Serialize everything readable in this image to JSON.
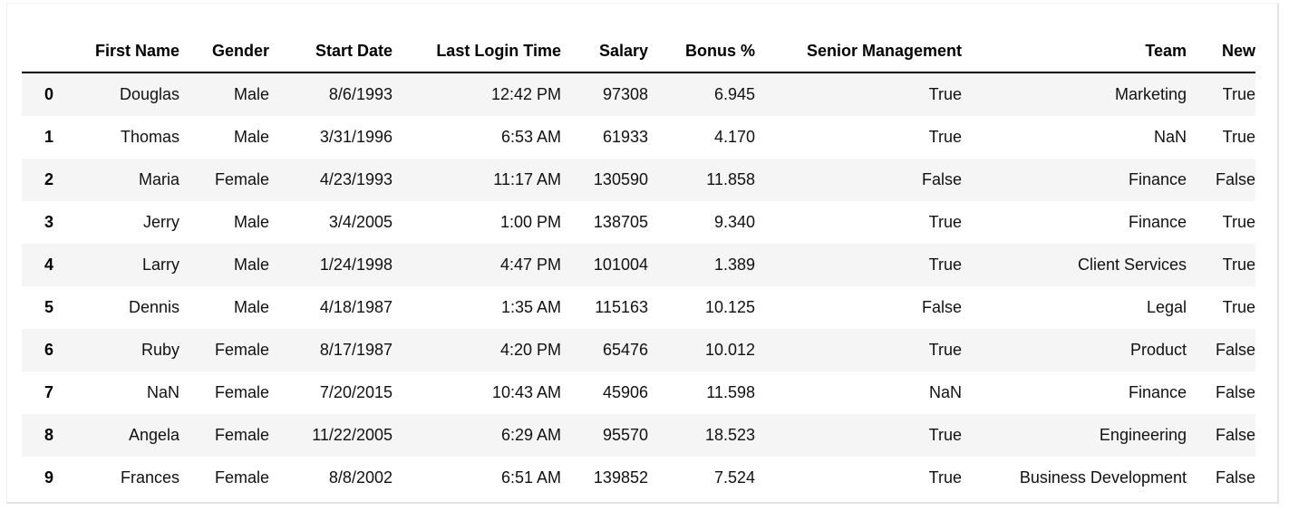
{
  "table": {
    "index_header": "",
    "columns": [
      "First Name",
      "Gender",
      "Start Date",
      "Last Login Time",
      "Salary",
      "Bonus %",
      "Senior Management",
      "Team",
      "New"
    ],
    "rows": [
      {
        "index": "0",
        "cells": [
          "Douglas",
          "Male",
          "8/6/1993",
          "12:42 PM",
          "97308",
          "6.945",
          "True",
          "Marketing",
          "True"
        ]
      },
      {
        "index": "1",
        "cells": [
          "Thomas",
          "Male",
          "3/31/1996",
          "6:53 AM",
          "61933",
          "4.170",
          "True",
          "NaN",
          "True"
        ]
      },
      {
        "index": "2",
        "cells": [
          "Maria",
          "Female",
          "4/23/1993",
          "11:17 AM",
          "130590",
          "11.858",
          "False",
          "Finance",
          "False"
        ]
      },
      {
        "index": "3",
        "cells": [
          "Jerry",
          "Male",
          "3/4/2005",
          "1:00 PM",
          "138705",
          "9.340",
          "True",
          "Finance",
          "True"
        ]
      },
      {
        "index": "4",
        "cells": [
          "Larry",
          "Male",
          "1/24/1998",
          "4:47 PM",
          "101004",
          "1.389",
          "True",
          "Client Services",
          "True"
        ]
      },
      {
        "index": "5",
        "cells": [
          "Dennis",
          "Male",
          "4/18/1987",
          "1:35 AM",
          "115163",
          "10.125",
          "False",
          "Legal",
          "True"
        ]
      },
      {
        "index": "6",
        "cells": [
          "Ruby",
          "Female",
          "8/17/1987",
          "4:20 PM",
          "65476",
          "10.012",
          "True",
          "Product",
          "False"
        ]
      },
      {
        "index": "7",
        "cells": [
          "NaN",
          "Female",
          "7/20/2015",
          "10:43 AM",
          "45906",
          "11.598",
          "NaN",
          "Finance",
          "False"
        ]
      },
      {
        "index": "8",
        "cells": [
          "Angela",
          "Female",
          "11/22/2005",
          "6:29 AM",
          "95570",
          "18.523",
          "True",
          "Engineering",
          "False"
        ]
      },
      {
        "index": "9",
        "cells": [
          "Frances",
          "Female",
          "8/8/2002",
          "6:51 AM",
          "139852",
          "7.524",
          "True",
          "Business Development",
          "False"
        ]
      }
    ]
  }
}
